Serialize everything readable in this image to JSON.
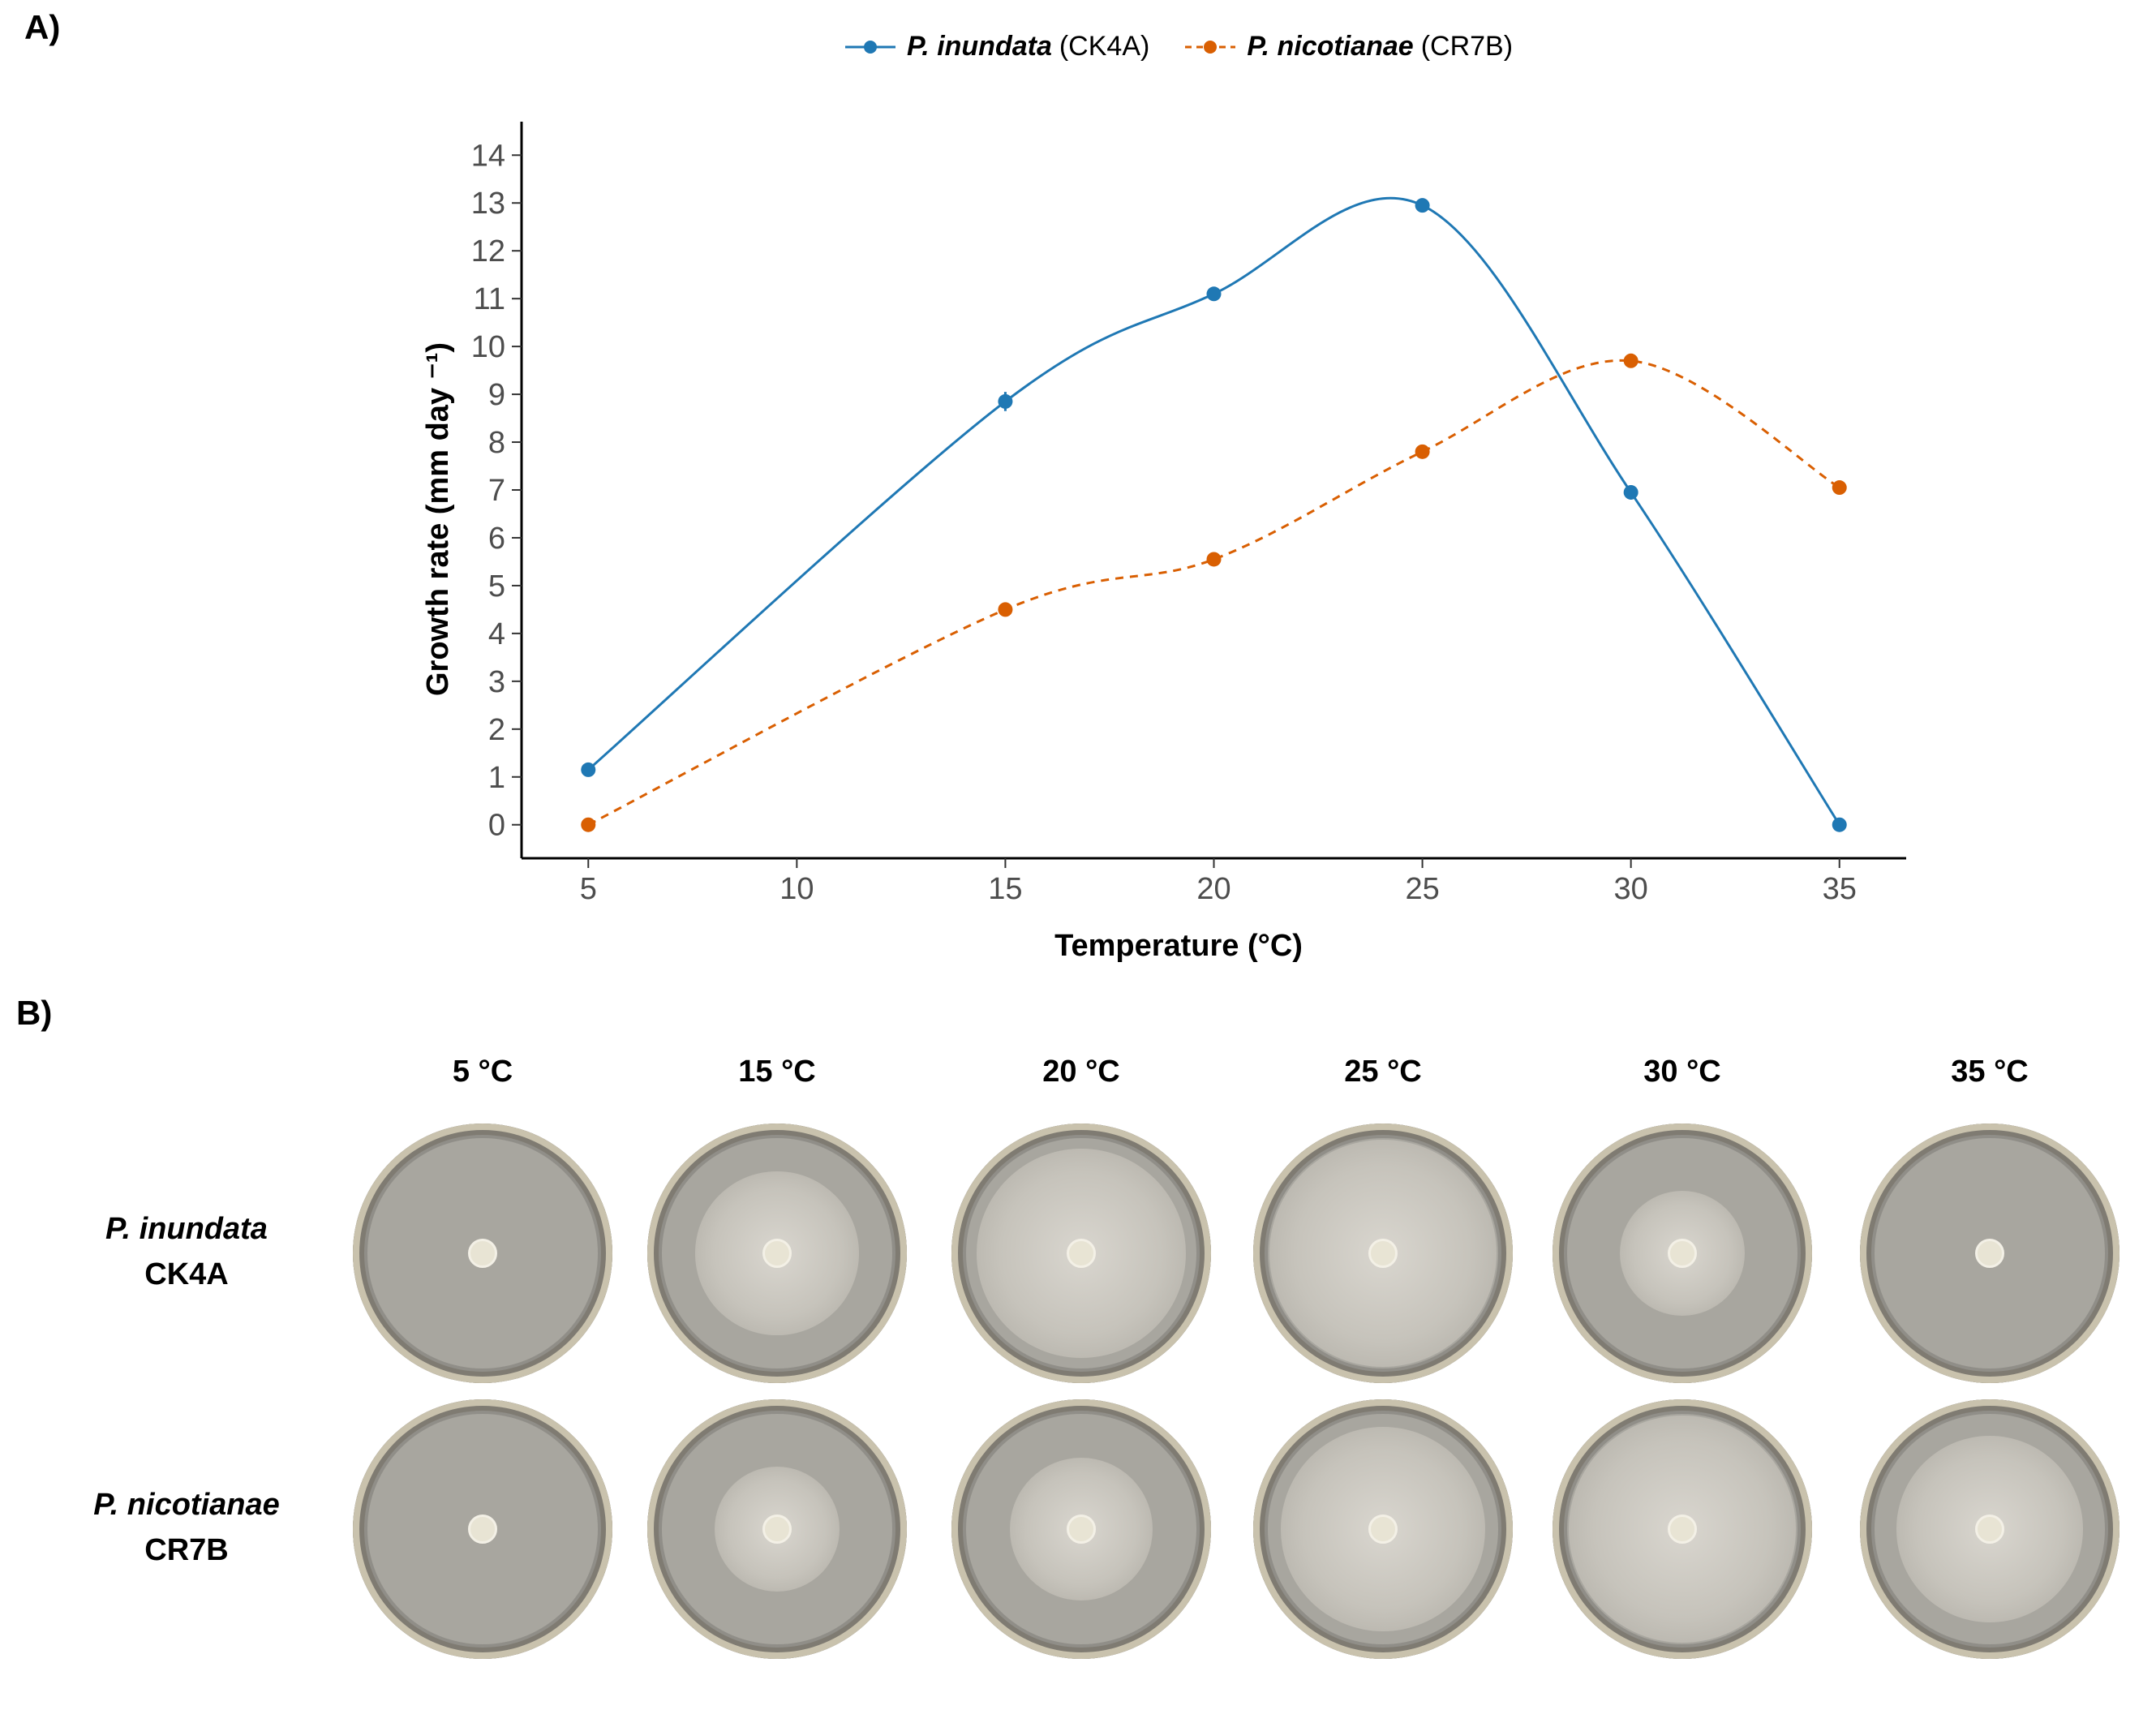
{
  "panel_a_label": "A)",
  "panel_b_label": "B)",
  "chart_data": {
    "type": "line",
    "xlabel": "Temperature (°C)",
    "ylabel": "Growth rate (mm day ⁻¹)",
    "xlim": [
      3.4,
      36.6
    ],
    "ylim": [
      -0.7,
      14.7
    ],
    "xticks": [
      5,
      10,
      15,
      20,
      25,
      30,
      35
    ],
    "yticks": [
      0,
      1,
      2,
      3,
      4,
      5,
      6,
      7,
      8,
      9,
      10,
      11,
      12,
      13,
      14
    ],
    "legend_position": "top",
    "series": [
      {
        "name": "P. inundata",
        "isolate": "(CK4A)",
        "color": "#1f78b4",
        "line_style": "solid",
        "x": [
          5,
          15,
          20,
          25,
          30,
          35
        ],
        "values": [
          1.15,
          8.85,
          11.1,
          12.95,
          6.95,
          0.0
        ],
        "error": [
          0.05,
          0.2,
          0.05,
          0.05,
          0.15,
          0.0
        ]
      },
      {
        "name": "P. nicotianae",
        "isolate": "(CR7B)",
        "color": "#d95f02",
        "line_style": "dashed",
        "x": [
          5,
          15,
          20,
          25,
          30,
          35
        ],
        "values": [
          0.0,
          4.5,
          5.55,
          7.8,
          9.7,
          7.05
        ],
        "error": [
          0.0,
          0.05,
          0.05,
          0.05,
          0.05,
          0.05
        ]
      }
    ]
  },
  "panel_b": {
    "temperatures": [
      "5 °C",
      "15 °C",
      "20 °C",
      "25 °C",
      "30 °C",
      "35 °C"
    ],
    "rows": [
      {
        "species": "P. inundata",
        "isolate": "CK4A",
        "colony_fraction": [
          0.08,
          0.72,
          0.92,
          1.0,
          0.55,
          0.07
        ]
      },
      {
        "species": "P. nicotianae",
        "isolate": "CR7B",
        "colony_fraction": [
          0.08,
          0.55,
          0.63,
          0.9,
          1.0,
          0.82
        ]
      }
    ]
  }
}
